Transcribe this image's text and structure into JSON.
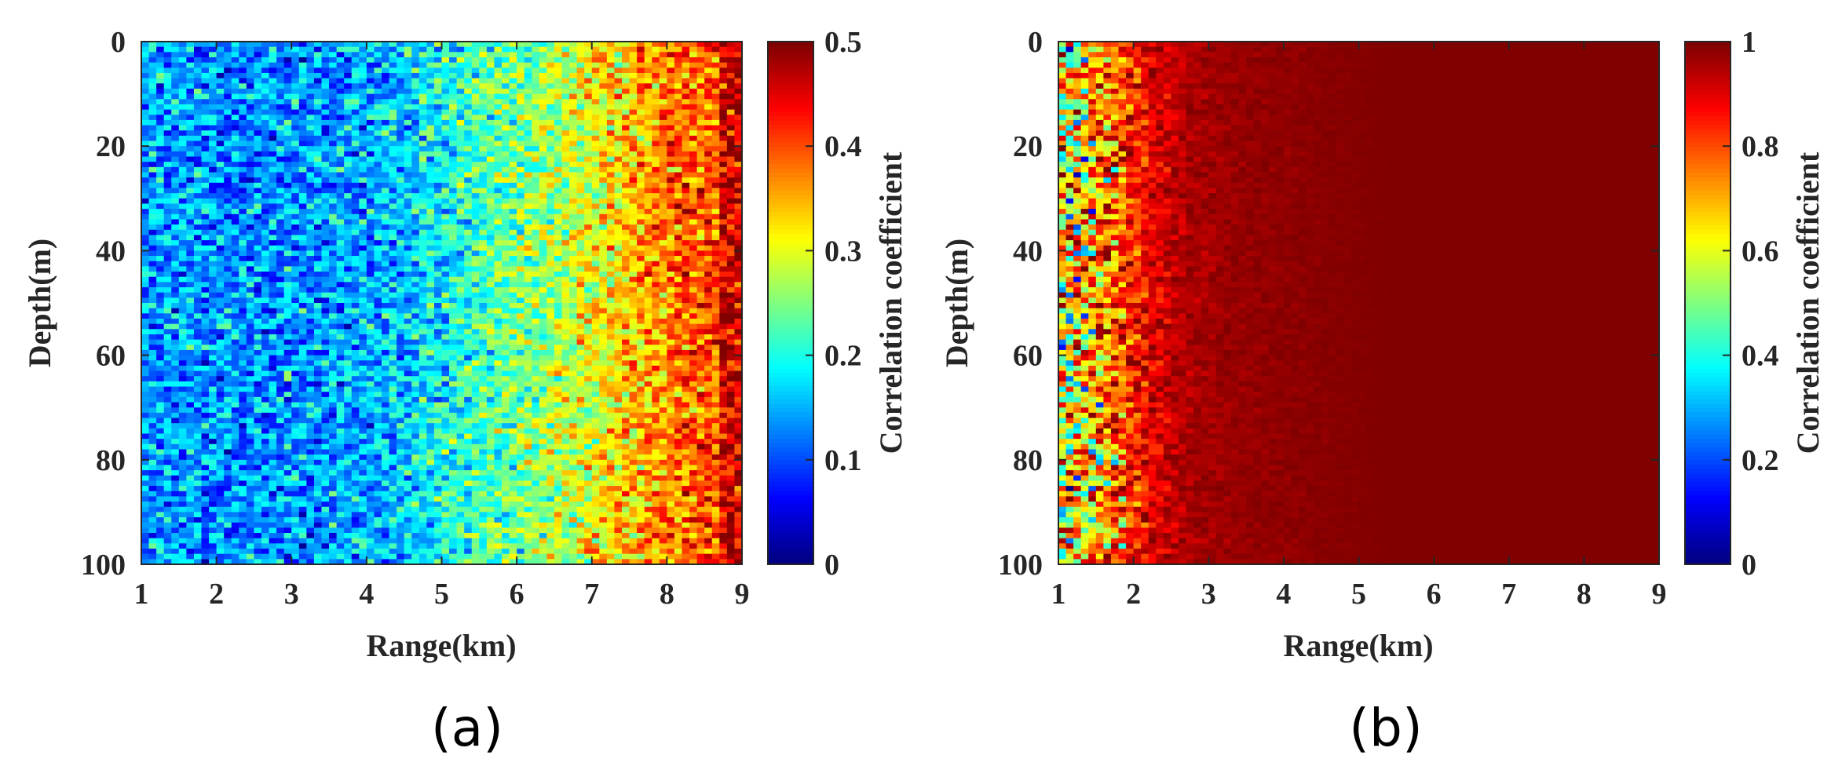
{
  "chart_data": [
    {
      "type": "heatmap",
      "panel_label": "(a)",
      "xlabel": "Range(km)",
      "ylabel": "Depth(m)",
      "colorbar_label": "Correlation coefficient",
      "colormap": "jet",
      "xlim": [
        1,
        9
      ],
      "ylim": [
        0,
        100
      ],
      "y_reversed": true,
      "clim": [
        0,
        0.5
      ],
      "x_ticks": [
        "1",
        "2",
        "3",
        "4",
        "5",
        "6",
        "7",
        "8",
        "9"
      ],
      "y_ticks": [
        "0",
        "20",
        "40",
        "60",
        "80",
        "100"
      ],
      "colorbar_ticks": [
        "0",
        "0.1",
        "0.2",
        "0.3",
        "0.4",
        "0.5"
      ],
      "grid": false,
      "range_bins_km": [
        1.5,
        2.5,
        3.5,
        4.5,
        5.5,
        6.5,
        7.5,
        8.5
      ],
      "mean_correlation_by_range": [
        0.14,
        0.13,
        0.14,
        0.16,
        0.22,
        0.27,
        0.34,
        0.4
      ],
      "trend": "correlation increases with range, reaching about 0.5 near 9 km"
    },
    {
      "type": "heatmap",
      "panel_label": "(b)",
      "xlabel": "Range(km)",
      "ylabel": "Depth(m)",
      "colorbar_label": "Correlation coefficient",
      "colormap": "jet",
      "xlim": [
        1,
        9
      ],
      "ylim": [
        0,
        100
      ],
      "y_reversed": true,
      "clim": [
        0,
        1
      ],
      "x_ticks": [
        "1",
        "2",
        "3",
        "4",
        "5",
        "6",
        "7",
        "8",
        "9"
      ],
      "y_ticks": [
        "0",
        "20",
        "40",
        "60",
        "80",
        "100"
      ],
      "colorbar_ticks": [
        "0",
        "0.2",
        "0.4",
        "0.6",
        "0.8",
        "1"
      ],
      "grid": false,
      "range_bins_km": [
        1.25,
        1.75,
        2.25,
        2.75,
        3.5,
        4.5,
        5.5,
        6.5,
        7.5,
        8.5
      ],
      "mean_correlation_by_range": [
        0.65,
        0.8,
        0.9,
        0.96,
        0.98,
        0.99,
        1.0,
        1.0,
        1.0,
        1.0
      ],
      "trend": "correlation near 1 beyond about 2.5 km, variable below 2 km"
    }
  ]
}
